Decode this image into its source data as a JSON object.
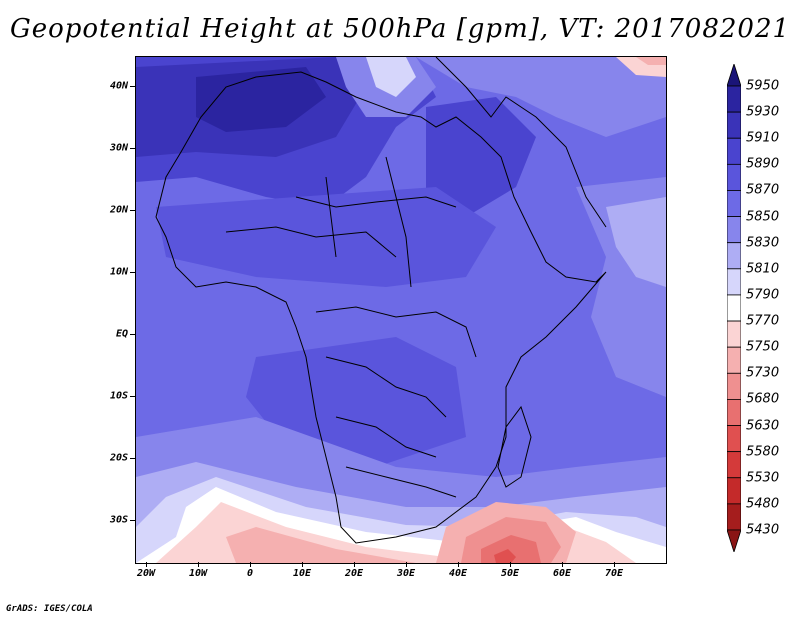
{
  "title": "Geopotential Height at 500hPa [gpm], VT: 2017082021",
  "map": {
    "lat_labels": [
      "40N",
      "30N",
      "20N",
      "10N",
      "EQ",
      "10S",
      "20S",
      "30S"
    ],
    "lon_labels": [
      "20W",
      "10W",
      "0",
      "10E",
      "20E",
      "30E",
      "40E",
      "50E",
      "60E",
      "70E"
    ],
    "lon_range_deg": [
      -22,
      80
    ],
    "lat_range_deg": [
      -37,
      45
    ],
    "field_colors": {
      "c5950": "#1a1478",
      "c5930": "#2b24a0",
      "c5910": "#3a33b8",
      "c5890": "#4a44cf",
      "c5870": "#5a55dc",
      "c5850": "#6d6ae6",
      "c5830": "#8785ec",
      "c5810": "#aeadf4",
      "c5790": "#d6d6fb",
      "c5770": "#ffffff",
      "c5750": "#fbd4d4",
      "c5730": "#f5b0b0",
      "c5680": "#ef9090",
      "c5630": "#e87070",
      "c5580": "#e05050"
    }
  },
  "colorbar": {
    "levels": [
      "5950",
      "5930",
      "5910",
      "5890",
      "5870",
      "5850",
      "5830",
      "5810",
      "5790",
      "5770",
      "5750",
      "5730",
      "5680",
      "5630",
      "5580",
      "5530",
      "5480",
      "5430"
    ],
    "colors": [
      "#1a1478",
      "#2b24a0",
      "#3a33b8",
      "#4a44cf",
      "#5a55dc",
      "#6d6ae6",
      "#8785ec",
      "#aeadf4",
      "#d6d6fb",
      "#ffffff",
      "#fbd4d4",
      "#f5b0b0",
      "#ef9090",
      "#e87070",
      "#e05050",
      "#d43a3a",
      "#c42a2a",
      "#a51d1d",
      "#8a1414"
    ]
  },
  "credit": "GrADS: IGES/COLA"
}
